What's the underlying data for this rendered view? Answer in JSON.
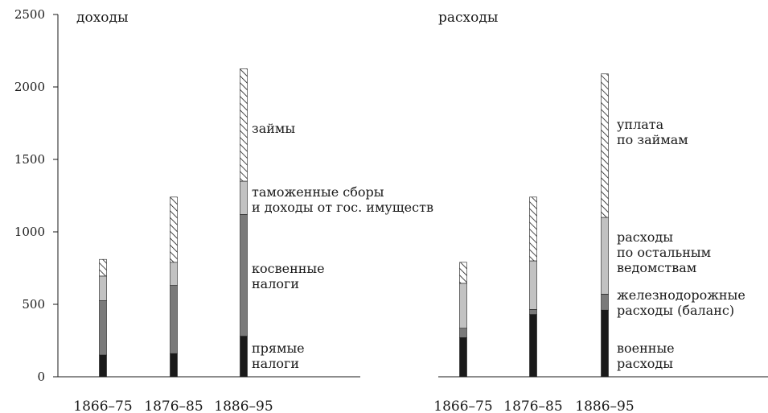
{
  "chart_data": [
    {
      "type": "bar",
      "stacked": true,
      "title": "доходы",
      "categories": [
        "1866–75",
        "1876–85",
        "1886–95"
      ],
      "ylim": [
        0,
        2500
      ],
      "yticks": [
        "0",
        "500",
        "1000",
        "1500",
        "2000",
        "2500"
      ],
      "grid": false,
      "series": [
        {
          "name": "прямые налоги",
          "values": [
            150,
            160,
            280
          ]
        },
        {
          "name": "косвенные налоги",
          "values": [
            375,
            470,
            840
          ]
        },
        {
          "name": "таможенные сборы и доходы от гос. имуществ",
          "values": [
            170,
            160,
            230
          ]
        },
        {
          "name": "займы",
          "values": [
            115,
            450,
            775
          ]
        }
      ],
      "legend": [
        {
          "lines": [
            "займы"
          ]
        },
        {
          "lines": [
            "таможенные сборы",
            "и доходы от гос. имуществ"
          ]
        },
        {
          "lines": [
            "косвенные",
            "налоги"
          ]
        },
        {
          "lines": [
            "прямые",
            "налоги"
          ]
        }
      ]
    },
    {
      "type": "bar",
      "stacked": true,
      "title": "расходы",
      "categories": [
        "1866–75",
        "1876–85",
        "1886–95"
      ],
      "ylim": [
        0,
        2500
      ],
      "grid": false,
      "series": [
        {
          "name": "военные расходы",
          "values": [
            270,
            430,
            460
          ]
        },
        {
          "name": "железнодорожные расходы (баланс)",
          "values": [
            65,
            35,
            110
          ]
        },
        {
          "name": "расходы по остальным ведомствам",
          "values": [
            310,
            335,
            530
          ]
        },
        {
          "name": "уплата по займам",
          "values": [
            145,
            440,
            990
          ]
        }
      ],
      "legend": [
        {
          "lines": [
            "уплата",
            "по займам"
          ]
        },
        {
          "lines": [
            "расходы",
            "по остальным",
            "ведомствам"
          ]
        },
        {
          "lines": [
            "железнодорожные",
            "расходы (баланс)"
          ]
        },
        {
          "lines": [
            "военные",
            "расходы"
          ]
        }
      ]
    }
  ]
}
